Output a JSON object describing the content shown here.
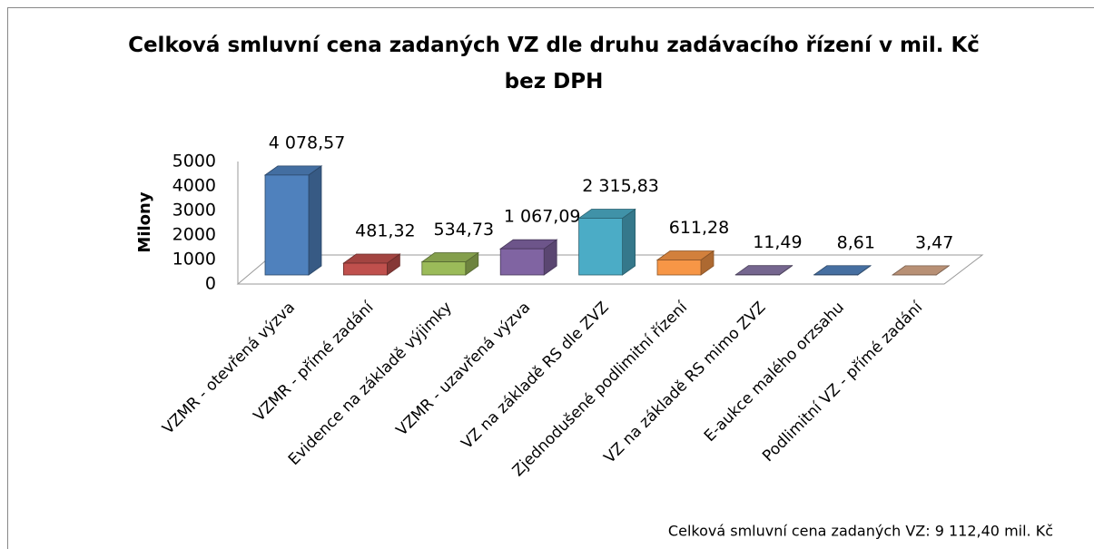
{
  "chart_data": {
    "type": "bar3d",
    "title": "Celková smluvní cena zadaných VZ dle druhu zadávacího řízení v mil. Kč bez DPH",
    "y_label": "Milony",
    "annotation": "Celková smluvní cena zadaných VZ: 9 112,40 mil. Kč",
    "categories": [
      "VZMR  - otevřená výzva",
      "VZMR - přímé zadání",
      "Evidence na základě výjimky",
      "VZMR - uzavřená výzva",
      "VZ na základě RS dle ZVZ",
      "Zjednodušené podlimitní řízení",
      "VZ na základě RS mimo ZVZ",
      "E-aukce malého orzsahu",
      "Podlimitní VZ - přímé zadání"
    ],
    "values": [
      4078.57,
      481.32,
      534.73,
      1067.09,
      2315.83,
      611.28,
      11.49,
      8.61,
      3.47
    ],
    "value_labels": [
      "4 078,57",
      "481,32",
      "534,73",
      "1 067,09",
      "2 315,83",
      "611,28",
      "11,49",
      "8,61",
      "3,47"
    ],
    "colors": [
      "#4f81bd",
      "#c0504d",
      "#9bbb59",
      "#8064a2",
      "#4bacc6",
      "#f79646",
      "#8a78a8",
      "#5283bd",
      "#d9a98a"
    ],
    "ylim": [
      0,
      5000
    ],
    "yticks": [
      0,
      1000,
      2000,
      3000,
      4000,
      5000
    ]
  }
}
